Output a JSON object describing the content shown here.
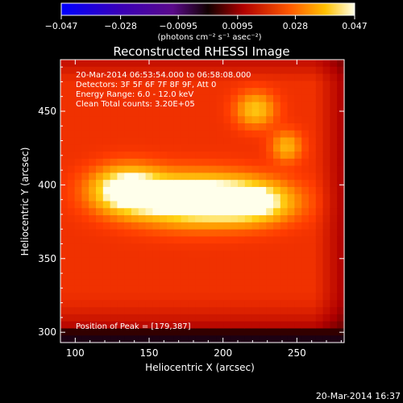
{
  "colorbar": {
    "tick_labels": [
      "−0.047",
      "−0.028",
      "−0.0095",
      "0.0095",
      "0.028",
      "0.047"
    ],
    "unit_label": "(photons cm⁻² s⁻¹ asec⁻²)",
    "range": [
      -0.047,
      0.047
    ]
  },
  "footer_date": "20-Mar-2014 16:37",
  "chart_data": {
    "type": "heatmap",
    "title": "Reconstructed RHESSI Image",
    "xlabel": "Heliocentric X (arcsec)",
    "ylabel": "Heliocentric Y (arcsec)",
    "xlim": [
      90,
      282
    ],
    "ylim": [
      293,
      485
    ],
    "xticks": [
      100,
      150,
      200,
      250
    ],
    "yticks": [
      300,
      350,
      400,
      450
    ],
    "annotations": [
      "20-Mar-2014 06:53:54.000 to 06:58:08.000",
      "Detectors: 3F 5F 6F 7F 8F 9F, Att 0",
      "Energy Range: 6.0 - 12.0 keV",
      "Clean     Total counts: 3.20E+05"
    ],
    "peak_label": "Position of Peak = [179,387]",
    "peak": [
      179,
      387
    ],
    "sources": [
      {
        "x": 182,
        "y": 390,
        "sx": 30,
        "sy": 11,
        "amp": 0.047
      },
      {
        "x": 135,
        "y": 397,
        "sx": 16,
        "sy": 10,
        "amp": 0.036
      },
      {
        "x": 222,
        "y": 388,
        "sx": 18,
        "sy": 9,
        "amp": 0.025
      },
      {
        "x": 222,
        "y": 451,
        "sx": 9,
        "sy": 8,
        "amp": 0.02
      },
      {
        "x": 243,
        "y": 426,
        "sx": 7,
        "sy": 7,
        "amp": 0.017
      }
    ],
    "background": 0.018
  }
}
